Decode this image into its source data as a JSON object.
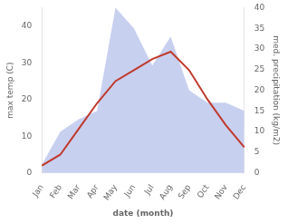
{
  "chart_data": {
    "type": "line",
    "xlabel": "date (month)",
    "ylabel": "max temp (C)",
    "y2label": "med. precipitation (kg/m2)",
    "categories": [
      "Jan",
      "Feb",
      "Mar",
      "Apr",
      "May",
      "Jun",
      "Jul",
      "Aug",
      "Sep",
      "Oct",
      "Nov",
      "Dec"
    ],
    "series": [
      {
        "type": "area",
        "axis": "y2",
        "color": "#c8d0f0",
        "values": [
          2,
          10,
          13,
          15,
          40,
          35,
          26,
          33,
          20,
          17,
          17,
          15
        ]
      },
      {
        "type": "line",
        "color": "#c0392b",
        "values": [
          2,
          5,
          12,
          19,
          25,
          28,
          31,
          33,
          28,
          20,
          13,
          7
        ]
      }
    ],
    "ylim": [
      0,
      45
    ],
    "yticks": [
      0,
      10,
      20,
      30,
      40
    ],
    "y2lim": [
      0,
      40
    ],
    "y2ticks": [
      0,
      5,
      10,
      15,
      20,
      25,
      30,
      35,
      40
    ],
    "grid": false
  }
}
